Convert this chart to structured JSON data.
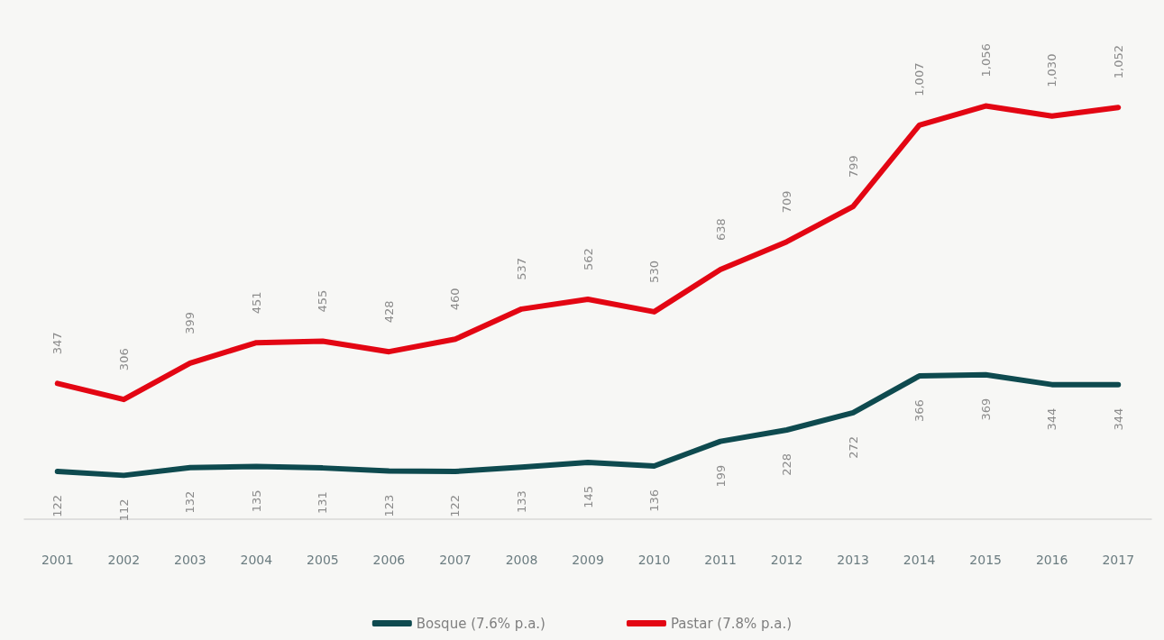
{
  "chart_data": {
    "type": "line",
    "categories": [
      "2001",
      "2002",
      "2003",
      "2004",
      "2005",
      "2006",
      "2007",
      "2008",
      "2009",
      "2010",
      "2011",
      "2012",
      "2013",
      "2014",
      "2015",
      "2016",
      "2017"
    ],
    "series": [
      {
        "name": "Bosque (7.6% p.a.)",
        "color": "#0e4a4f",
        "values": [
          122,
          112,
          132,
          135,
          131,
          123,
          122,
          133,
          145,
          136,
          199,
          228,
          272,
          366,
          369,
          344,
          344
        ],
        "value_labels": [
          "122",
          "112",
          "132",
          "135",
          "131",
          "123",
          "122",
          "133",
          "145",
          "136",
          "199",
          "228",
          "272",
          "366",
          "369",
          "344",
          "344"
        ]
      },
      {
        "name": "Pastar (7.8% p.a.)",
        "color": "#e30613",
        "values": [
          347,
          306,
          399,
          451,
          455,
          428,
          460,
          537,
          562,
          530,
          638,
          709,
          799,
          1007,
          1056,
          1030,
          1052
        ],
        "value_labels": [
          "347",
          "306",
          "399",
          "451",
          "455",
          "428",
          "460",
          "537",
          "562",
          "530",
          "638",
          "709",
          "799",
          "1,007",
          "1,056",
          "1,030",
          "1,052"
        ]
      }
    ],
    "legend": "bottom",
    "marker": "none",
    "line_style": "solid"
  }
}
